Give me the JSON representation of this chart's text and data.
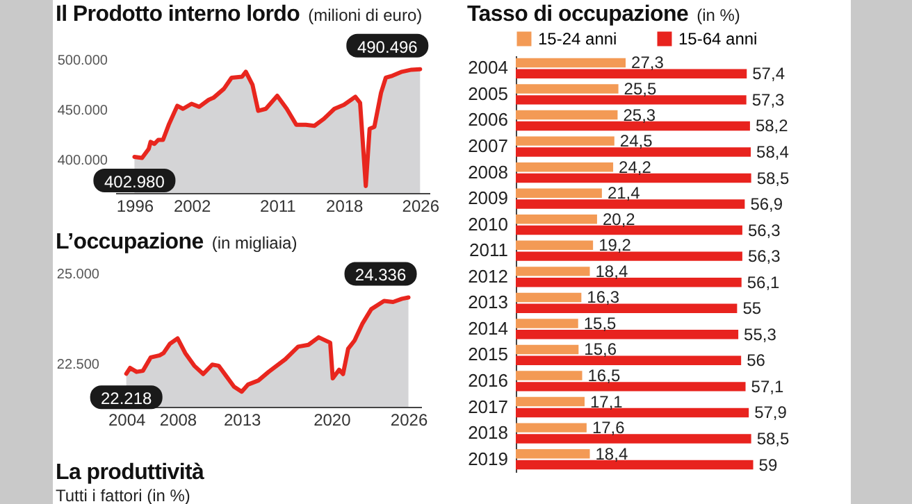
{
  "chart_data": [
    {
      "type": "area",
      "title": "Il Prodotto interno lordo",
      "subtitle": "(milioni di euro)",
      "x": [
        1996,
        1996.8,
        1997.5,
        1997.7,
        1998.1,
        1998.5,
        1999,
        1999.6,
        2000.5,
        2001.1,
        2002,
        2002.8,
        2003.8,
        2004.3,
        2005.4,
        2006.2,
        2007.3,
        2007.7,
        2008.4,
        2009,
        2009.8,
        2011,
        2012,
        2013,
        2014,
        2014.9,
        2015.9,
        2017,
        2018,
        2019.2,
        2019.7,
        2020.3,
        2020.7,
        2021.2,
        2021.9,
        2022.4,
        2023.1,
        2024.1,
        2025.1,
        2026
      ],
      "series": [
        {
          "color": "#e8261e",
          "values": [
            402980,
            402000,
            411000,
            418000,
            416000,
            420000,
            420000,
            435000,
            454000,
            451000,
            456000,
            453000,
            460000,
            462000,
            471000,
            482000,
            483000,
            488000,
            475000,
            449000,
            451000,
            464000,
            451000,
            435000,
            435000,
            434000,
            441000,
            451000,
            455000,
            463000,
            457000,
            374000,
            431000,
            433000,
            467000,
            482000,
            484000,
            488000,
            490000,
            490496
          ]
        }
      ],
      "xlim": [
        1994,
        2027
      ],
      "xticks": [
        1996,
        2002,
        2011,
        2018,
        2026
      ],
      "ylim": [
        367000,
        500000
      ],
      "yticks": [
        {
          "value": 400000,
          "label": "400.000"
        },
        {
          "value": 450000,
          "label": "450.000"
        },
        {
          "value": 500000,
          "label": "500.000"
        }
      ],
      "annotations": [
        {
          "text": "402.980",
          "x": 1996,
          "y": 402980
        },
        {
          "text": "490.496",
          "x": 2026,
          "y": 490496
        }
      ]
    },
    {
      "type": "area",
      "title": "L’occupazione",
      "subtitle": "(in migliaia)",
      "x": [
        2004,
        2004.3,
        2004.8,
        2005.3,
        2005.9,
        2006.6,
        2006.9,
        2007.4,
        2008,
        2008.6,
        2009.3,
        2010,
        2010.7,
        2011.2,
        2011.8,
        2012.4,
        2013,
        2013.5,
        2014.3,
        2015.1,
        2016.4,
        2017.4,
        2018.2,
        2019,
        2019.9,
        2020.1,
        2020.6,
        2020.9,
        2021.3,
        2021.8,
        2022.4,
        2023.1,
        2024.1,
        2024.8,
        2025.5,
        2026
      ],
      "series": [
        {
          "color": "#e8261e",
          "values": [
            22218,
            22380,
            22270,
            22300,
            22670,
            22730,
            22790,
            23050,
            23200,
            22790,
            22440,
            22210,
            22470,
            22440,
            22150,
            21860,
            21720,
            21920,
            22030,
            22270,
            22620,
            22970,
            23020,
            23230,
            23080,
            22090,
            22330,
            22210,
            22910,
            23140,
            23600,
            24010,
            24240,
            24210,
            24300,
            24336
          ]
        }
      ],
      "xlim": [
        2002.5,
        2027
      ],
      "xticks": [
        2004,
        2008,
        2013,
        2020,
        2026
      ],
      "ylim": [
        21300,
        25000
      ],
      "yticks": [
        {
          "value": 22500,
          "label": "22.500"
        },
        {
          "value": 25000,
          "label": "25.000"
        }
      ],
      "annotations": [
        {
          "text": "22.218",
          "x": 2004,
          "y": 22218
        },
        {
          "text": "24.336",
          "x": 2026,
          "y": 24336
        }
      ]
    },
    {
      "type": "other",
      "title": "La produttività",
      "subtitle": "Tutti i fattori (in %)"
    },
    {
      "type": "bar",
      "title": "Tasso di occupazione",
      "subtitle": "(in %)",
      "orientation": "horizontal",
      "legend": "top",
      "tick_labels": "y",
      "categories": [
        "2004",
        "2005",
        "2006",
        "2007",
        "2008",
        "2009",
        "2010",
        "2011",
        "2012",
        "2013",
        "2014",
        "2015",
        "2016",
        "2017",
        "2018",
        "2019"
      ],
      "series": [
        {
          "name": "15-24 anni",
          "color": "#f39a55",
          "values": [
            27.3,
            25.5,
            25.3,
            24.5,
            24.2,
            21.4,
            20.2,
            19.2,
            18.4,
            16.3,
            15.5,
            15.6,
            16.5,
            17.1,
            17.6,
            18.4
          ],
          "value_labels": [
            "27,3",
            "25,5",
            "25,3",
            "24,5",
            "24,2",
            "21,4",
            "20,2",
            "19,2",
            "18,4",
            "16,3",
            "15,5",
            "15,6",
            "16,5",
            "17,1",
            "17,6",
            "18,4"
          ]
        },
        {
          "name": "15-64 anni",
          "color": "#e8231e",
          "values": [
            57.4,
            57.3,
            58.2,
            58.4,
            58.5,
            56.9,
            56.3,
            56.3,
            56.1,
            55,
            55.3,
            56,
            57.1,
            57.9,
            58.5,
            59
          ],
          "value_labels": [
            "57,4",
            "57,3",
            "58,2",
            "58,4",
            "58,5",
            "56,9",
            "56,3",
            "56,3",
            "56,1",
            "55",
            "55,3",
            "56",
            "57,1",
            "57,9",
            "58,5",
            "59"
          ]
        }
      ]
    }
  ]
}
